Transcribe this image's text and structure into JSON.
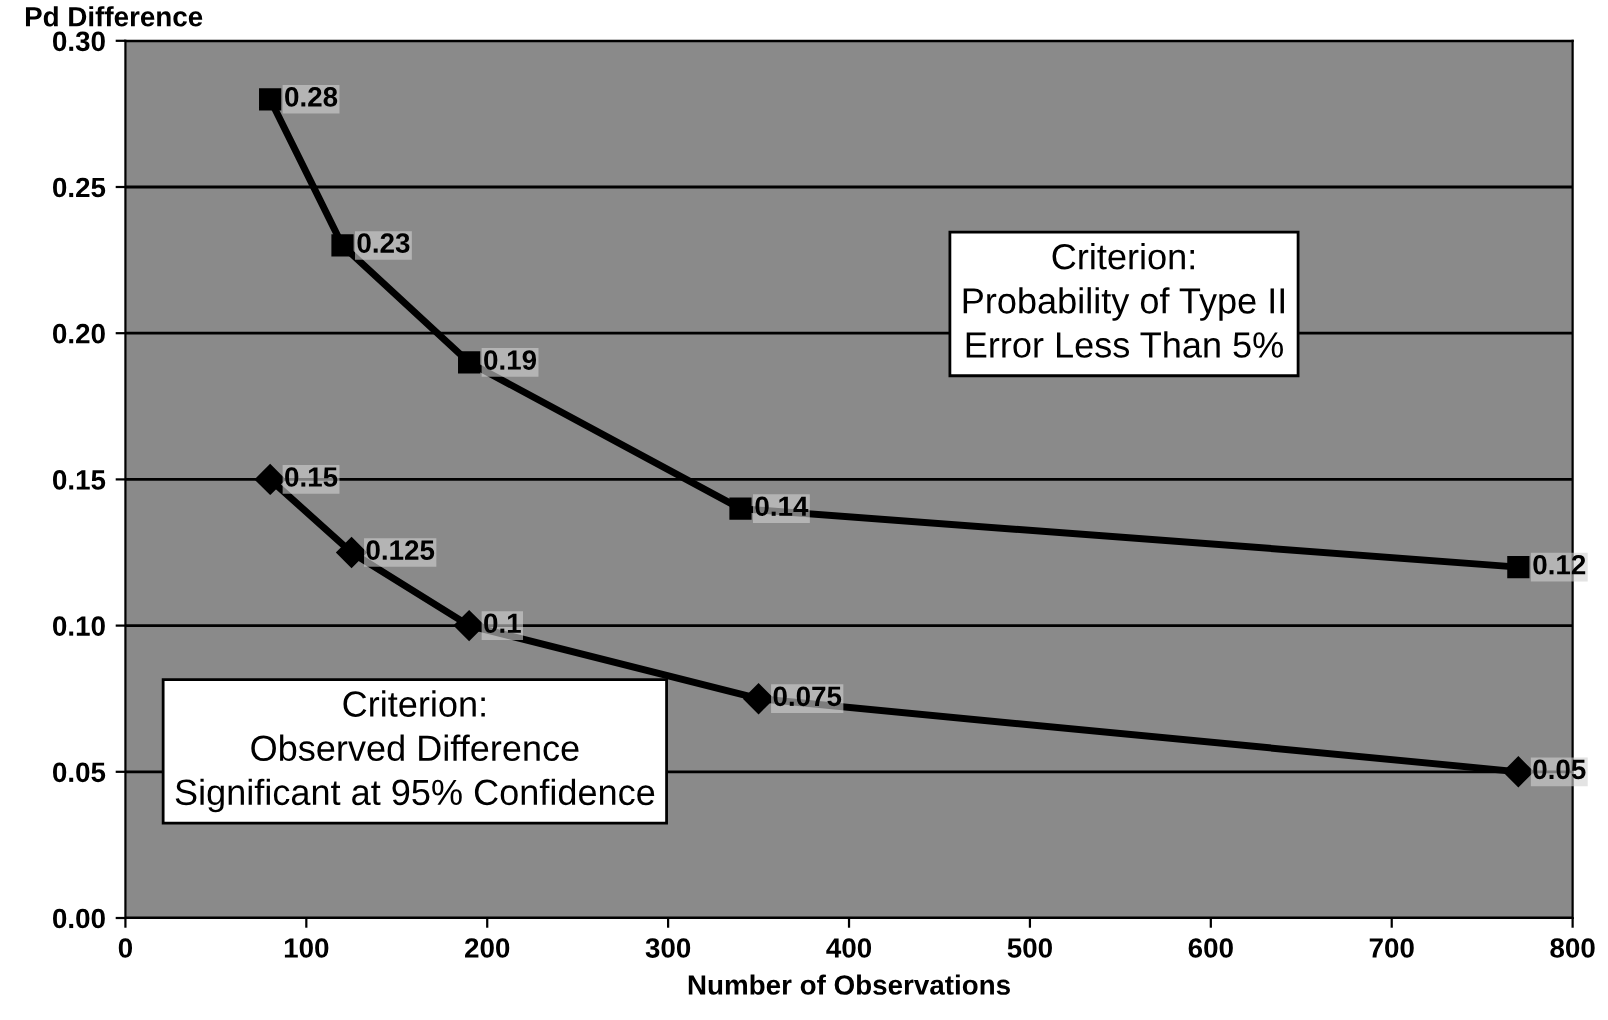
{
  "chart_data": {
    "type": "line",
    "ylabel": "Pd Difference",
    "xlabel": "Number of Observations",
    "series": [
      {
        "x": [
          80,
          120,
          190,
          340,
          770
        ],
        "values": [
          0.28,
          0.23,
          0.19,
          0.14,
          0.12
        ],
        "color": "#000000",
        "marker": "square"
      },
      {
        "x": [
          80,
          125,
          190,
          350,
          770
        ],
        "values": [
          0.15,
          0.125,
          0.1,
          0.075,
          0.05
        ],
        "color": "#000000",
        "marker": "diamond"
      }
    ],
    "xlim": [
      0,
      800
    ],
    "xticks": [
      0,
      100,
      200,
      300,
      400,
      500,
      600,
      700,
      800
    ],
    "ylim": [
      0,
      0.3
    ],
    "yticks": [
      {
        "value": 0,
        "label": "0.00"
      },
      {
        "value": 0.05,
        "label": "0.05"
      },
      {
        "value": 0.1,
        "label": "0.10"
      },
      {
        "value": 0.15,
        "label": "0.15"
      },
      {
        "value": 0.2,
        "label": "0.20"
      },
      {
        "value": 0.25,
        "label": "0.25"
      },
      {
        "value": 0.3,
        "label": "0.30"
      }
    ],
    "grid": "y",
    "data_labels": true,
    "line_style": "solid",
    "annotations": [
      "Criterion:\nProbability of Type II\nError Less Than 5%",
      "Criterion:\nObserved Difference\nSignificant at 95% Confidence"
    ]
  }
}
